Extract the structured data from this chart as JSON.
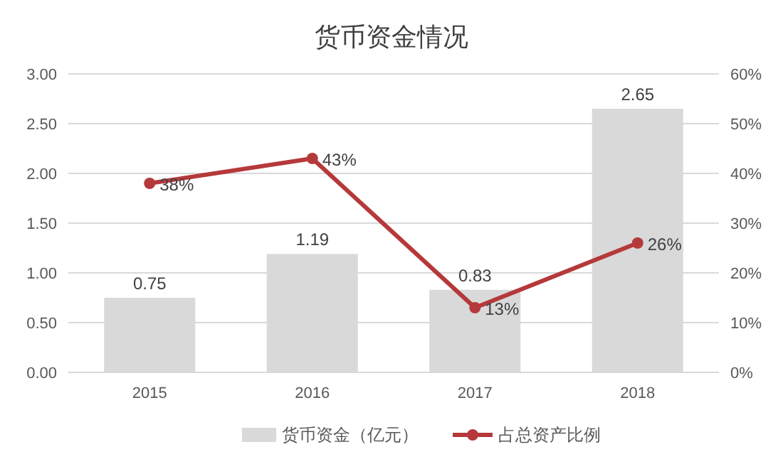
{
  "chart_data": {
    "type": "bar",
    "title": "货币资金情况",
    "categories": [
      "2015",
      "2016",
      "2017",
      "2018"
    ],
    "series": [
      {
        "name": "货币资金（亿元）",
        "color": "#d9d9d9",
        "values": [
          0.75,
          1.19,
          0.83,
          2.65
        ]
      },
      {
        "name": "占总资产比例",
        "type": "line",
        "axis": "y2",
        "color": "#b5393b",
        "values": [
          38,
          43,
          13,
          26
        ],
        "value_labels": [
          "38%",
          "43%",
          "13%",
          "26%"
        ]
      }
    ],
    "ylim": [
      0,
      3
    ],
    "yticks": [
      {
        "value": 0,
        "label": "0.00"
      },
      {
        "value": 0.5,
        "label": "0.50"
      },
      {
        "value": 1,
        "label": "1.00"
      },
      {
        "value": 1.5,
        "label": "1.50"
      },
      {
        "value": 2,
        "label": "2.00"
      },
      {
        "value": 2.5,
        "label": "2.50"
      },
      {
        "value": 3,
        "label": "3.00"
      }
    ],
    "y2lim": [
      0,
      60
    ],
    "y2ticks": [
      {
        "value": 0,
        "label": "0%"
      },
      {
        "value": 10,
        "label": "10%"
      },
      {
        "value": 20,
        "label": "20%"
      },
      {
        "value": 30,
        "label": "30%"
      },
      {
        "value": 40,
        "label": "40%"
      },
      {
        "value": 50,
        "label": "50%"
      },
      {
        "value": 60,
        "label": "60%"
      }
    ],
    "grid": "y",
    "legend": "bottom",
    "marker": "circle",
    "line_style": "solid",
    "data_labels": true
  }
}
